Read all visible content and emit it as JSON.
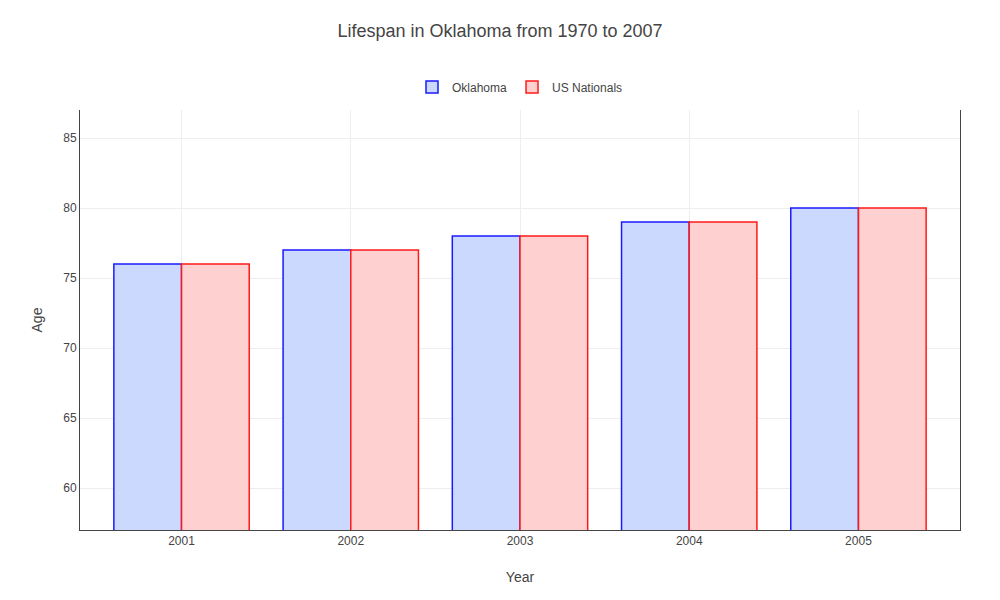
{
  "chart_data": {
    "type": "bar",
    "title": "Lifespan in Oklahoma from 1970 to 2007",
    "xlabel": "Year",
    "ylabel": "Age",
    "categories": [
      "2001",
      "2002",
      "2003",
      "2004",
      "2005"
    ],
    "series": [
      {
        "name": "Oklahoma",
        "color": "#ccd9ff",
        "values": [
          76,
          77,
          78,
          79,
          80
        ]
      },
      {
        "name": "US Nationals",
        "color": "#ffd0d0",
        "values": [
          76,
          77,
          78,
          79,
          80
        ]
      }
    ],
    "ylim": [
      57,
      87
    ],
    "yticks": [
      60,
      65,
      70,
      75,
      80,
      85
    ],
    "grid": true,
    "legend": "top"
  }
}
